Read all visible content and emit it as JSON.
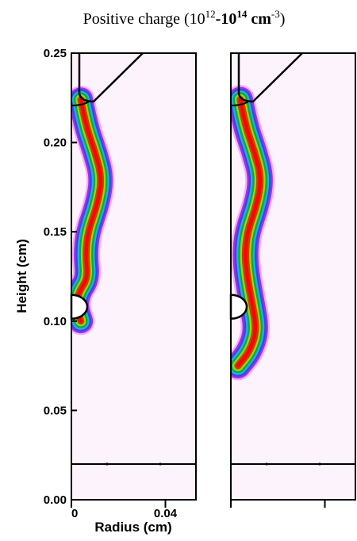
{
  "chart_data": {
    "type": "heatmap",
    "title": {
      "prefix": "Positive charge (10",
      "exp1": "12",
      "middle": "-10",
      "exp2": "14",
      "unit": " cm",
      "exp3": "-3",
      "suffix": ")"
    },
    "xlabel": "Radius (cm)",
    "ylabel": "Height (cm)",
    "xlim": [
      0,
      0.053
    ],
    "ylim": [
      0,
      0.25
    ],
    "x_ticks": [
      {
        "value": 0,
        "label": "0"
      },
      {
        "value": 0.04,
        "label": "0.04"
      }
    ],
    "y_ticks": [
      {
        "value": 0.0,
        "label": "0.00"
      },
      {
        "value": 0.05,
        "label": "0.05"
      },
      {
        "value": 0.1,
        "label": "0.10"
      },
      {
        "value": 0.15,
        "label": "0.15"
      },
      {
        "value": 0.2,
        "label": "0.20"
      },
      {
        "value": 0.25,
        "label": "0.25"
      }
    ],
    "colormap": [
      "#ff66ff",
      "#8a2be2",
      "#3344ee",
      "#22bbcc",
      "#00aa44",
      "#aadd00",
      "#cc3300",
      "#ff0000"
    ],
    "background_color": "#fdf3fd",
    "electrode_line_height": 0.02,
    "panels": [
      {
        "name": "left",
        "streamer_path": [
          [
            0.004,
            0.224
          ],
          [
            0.006,
            0.21
          ],
          [
            0.01,
            0.195
          ],
          [
            0.013,
            0.18
          ],
          [
            0.011,
            0.165
          ],
          [
            0.007,
            0.15
          ],
          [
            0.006,
            0.137
          ],
          [
            0.007,
            0.124
          ],
          [
            0.003,
            0.116
          ],
          [
            0.002,
            0.108
          ],
          [
            0.004,
            0.1
          ]
        ],
        "widths": [
          0.003,
          0.004,
          0.005,
          0.006,
          0.006,
          0.006,
          0.006,
          0.006,
          0.007,
          0.007,
          0.006
        ]
      },
      {
        "name": "right",
        "streamer_path": [
          [
            0.004,
            0.224
          ],
          [
            0.006,
            0.21
          ],
          [
            0.01,
            0.195
          ],
          [
            0.013,
            0.18
          ],
          [
            0.011,
            0.165
          ],
          [
            0.007,
            0.15
          ],
          [
            0.006,
            0.137
          ],
          [
            0.007,
            0.124
          ],
          [
            0.009,
            0.11
          ],
          [
            0.011,
            0.095
          ],
          [
            0.008,
            0.083
          ],
          [
            0.003,
            0.075
          ]
        ],
        "widths": [
          0.003,
          0.004,
          0.005,
          0.006,
          0.006,
          0.006,
          0.006,
          0.006,
          0.007,
          0.007,
          0.008,
          0.007
        ]
      }
    ]
  }
}
